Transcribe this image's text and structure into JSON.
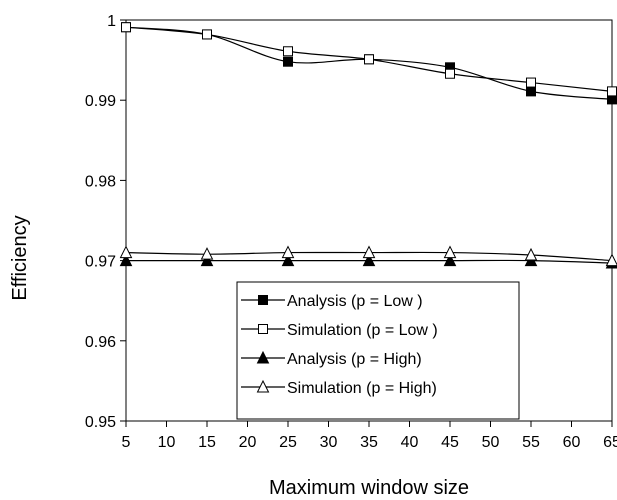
{
  "chart_data": {
    "type": "line",
    "title": "",
    "xlabel": "Maximum window size",
    "ylabel": "Efficiency",
    "x": [
      5,
      15,
      25,
      35,
      45,
      55,
      65
    ],
    "x_ticks": [
      5,
      10,
      15,
      20,
      25,
      30,
      35,
      40,
      45,
      50,
      55,
      60,
      65
    ],
    "y_ticks": [
      0.95,
      0.96,
      0.97,
      0.98,
      0.99,
      1
    ],
    "xlim": [
      5,
      65
    ],
    "ylim": [
      0.95,
      1
    ],
    "grid": false,
    "legend_position": "lower-center",
    "series": [
      {
        "name": "Analysis (p = Low )",
        "marker": "filled-square",
        "values": [
          0.9991,
          0.9982,
          0.9948,
          0.9951,
          0.9941,
          0.9911,
          0.9901
        ]
      },
      {
        "name": "Simulation (p = Low )",
        "marker": "open-square",
        "values": [
          0.9991,
          0.9982,
          0.9961,
          0.9951,
          0.9933,
          0.9922,
          0.9911
        ]
      },
      {
        "name": "Analysis (p = High)",
        "marker": "filled-triangle",
        "values": [
          0.97,
          0.97,
          0.97,
          0.97,
          0.97,
          0.97,
          0.9697
        ]
      },
      {
        "name": "Simulation (p = High)",
        "marker": "open-triangle",
        "values": [
          0.971,
          0.9708,
          0.971,
          0.971,
          0.971,
          0.9707,
          0.97
        ]
      }
    ]
  }
}
